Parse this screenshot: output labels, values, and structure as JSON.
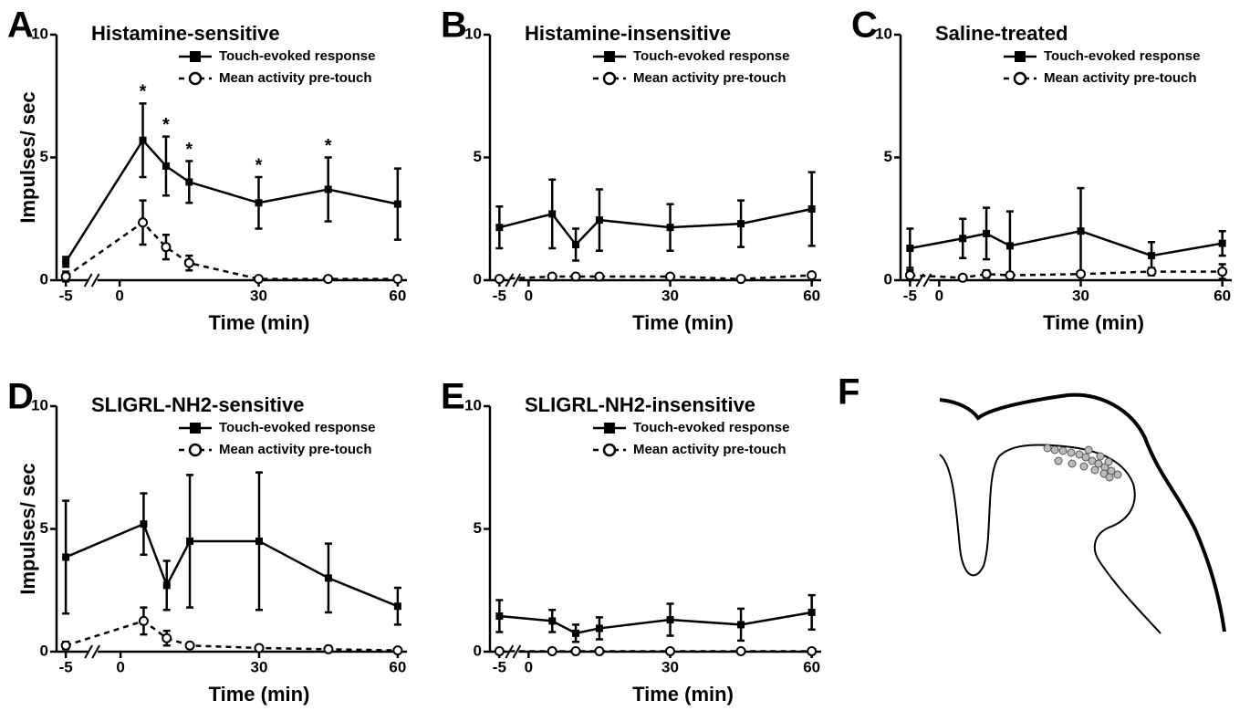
{
  "chart_data": [
    {
      "type": "line",
      "panel": "A",
      "title": "Histamine-sensitive",
      "ylabel": "Impulses/ sec",
      "xlabel": "Time (min)",
      "x": [
        -5,
        5,
        10,
        15,
        30,
        45,
        60
      ],
      "xlim": [
        -7,
        62
      ],
      "xticks": [
        -5,
        0,
        30,
        60
      ],
      "axis_break": true,
      "ylim": [
        0,
        10
      ],
      "yticks": [
        0,
        5,
        10
      ],
      "legend": "top-right",
      "series": [
        {
          "name": "Touch-evoked response",
          "color": "#000000",
          "marker": "square",
          "dashed": false,
          "values": [
            0.75,
            5.7,
            4.65,
            4.0,
            3.15,
            3.7,
            3.1
          ],
          "errors": [
            0.2,
            1.5,
            1.2,
            0.85,
            1.05,
            1.3,
            1.45
          ]
        },
        {
          "name": "Mean activity pre-touch",
          "color": "#000000",
          "marker": "open-circle",
          "dashed": true,
          "values": [
            0.15,
            2.35,
            1.35,
            0.7,
            0.05,
            0.05,
            0.05
          ],
          "errors": [
            0.2,
            0.9,
            0.5,
            0.3,
            0,
            0,
            0
          ]
        }
      ],
      "significance": {
        "x": [
          5,
          10,
          15,
          30,
          45
        ],
        "label": "*"
      }
    },
    {
      "type": "line",
      "panel": "B",
      "title": "Histamine-insensitive",
      "xlabel": "Time (min)",
      "x": [
        -5,
        5,
        10,
        15,
        30,
        45,
        60
      ],
      "xlim": [
        -7,
        62
      ],
      "xticks": [
        -5,
        0,
        30,
        60
      ],
      "axis_break": true,
      "ylim": [
        0,
        10
      ],
      "yticks": [
        0,
        5,
        10
      ],
      "legend": "top-right",
      "series": [
        {
          "name": "Touch-evoked response",
          "color": "#000000",
          "marker": "square",
          "dashed": false,
          "values": [
            2.15,
            2.7,
            1.45,
            2.45,
            2.15,
            2.3,
            2.9
          ],
          "errors": [
            0.85,
            1.4,
            0.65,
            1.25,
            0.95,
            0.95,
            1.5
          ]
        },
        {
          "name": "Mean activity pre-touch",
          "color": "#000000",
          "marker": "open-circle",
          "dashed": true,
          "values": [
            0.05,
            0.15,
            0.15,
            0.15,
            0.15,
            0.05,
            0.2
          ],
          "errors": [
            0.05,
            0.05,
            0.05,
            0.05,
            0.05,
            0.05,
            0.1
          ]
        }
      ]
    },
    {
      "type": "line",
      "panel": "C",
      "title": "Saline-treated",
      "xlabel": "Time (min)",
      "x": [
        -5,
        5,
        10,
        15,
        30,
        45,
        60
      ],
      "xlim": [
        -7,
        62
      ],
      "xticks": [
        -5,
        0,
        30,
        60
      ],
      "axis_break": true,
      "ylim": [
        0,
        10
      ],
      "yticks": [
        0,
        5,
        10
      ],
      "legend": "top-right",
      "series": [
        {
          "name": "Touch-evoked response",
          "color": "#000000",
          "marker": "square",
          "dashed": false,
          "values": [
            1.3,
            1.7,
            1.9,
            1.4,
            2.0,
            1.0,
            1.5
          ],
          "errors": [
            0.8,
            0.8,
            1.05,
            1.4,
            1.75,
            0.55,
            0.5
          ]
        },
        {
          "name": "Mean activity pre-touch",
          "color": "#000000",
          "marker": "open-circle",
          "dashed": true,
          "values": [
            0.2,
            0.1,
            0.25,
            0.2,
            0.25,
            0.35,
            0.35
          ],
          "errors": [
            0.2,
            0.05,
            0.15,
            0.1,
            0.1,
            0.15,
            0.3
          ]
        }
      ]
    },
    {
      "type": "line",
      "panel": "D",
      "title": "SLIGRL-NH2-sensitive",
      "ylabel": "Impulses/ sec",
      "xlabel": "Time (min)",
      "x": [
        -5,
        5,
        10,
        15,
        30,
        45,
        60
      ],
      "xlim": [
        -7,
        62
      ],
      "xticks": [
        -5,
        0,
        30,
        60
      ],
      "axis_break": true,
      "ylim": [
        0,
        10
      ],
      "yticks": [
        0,
        5,
        10
      ],
      "legend": "top-right",
      "series": [
        {
          "name": "Touch-evoked response",
          "color": "#000000",
          "marker": "square",
          "dashed": false,
          "values": [
            3.85,
            5.2,
            2.7,
            4.5,
            4.5,
            3.0,
            1.85
          ],
          "errors": [
            2.3,
            1.25,
            1.0,
            2.7,
            2.8,
            1.4,
            0.75
          ]
        },
        {
          "name": "Mean activity pre-touch",
          "color": "#000000",
          "marker": "open-circle",
          "dashed": true,
          "values": [
            0.25,
            1.25,
            0.55,
            0.25,
            0.15,
            0.1,
            0.05
          ],
          "errors": [
            0.15,
            0.55,
            0.3,
            0.1,
            0.05,
            0.05,
            0.05
          ]
        }
      ]
    },
    {
      "type": "line",
      "panel": "E",
      "title": "SLIGRL-NH2-insensitive",
      "xlabel": "Time (min)",
      "x": [
        -5,
        5,
        10,
        15,
        30,
        45,
        60
      ],
      "xlim": [
        -7,
        62
      ],
      "xticks": [
        -5,
        0,
        30,
        60
      ],
      "axis_break": true,
      "ylim": [
        0,
        10
      ],
      "yticks": [
        0,
        5,
        10
      ],
      "legend": "top-right",
      "series": [
        {
          "name": "Touch-evoked response",
          "color": "#000000",
          "marker": "square",
          "dashed": false,
          "values": [
            1.45,
            1.25,
            0.75,
            0.95,
            1.3,
            1.1,
            1.6
          ],
          "errors": [
            0.65,
            0.45,
            0.35,
            0.45,
            0.65,
            0.65,
            0.7
          ]
        },
        {
          "name": "Mean activity pre-touch",
          "color": "#000000",
          "marker": "open-circle",
          "dashed": true,
          "values": [
            0.02,
            0.02,
            0.02,
            0.02,
            0.02,
            0.02,
            0.02
          ],
          "errors": [
            0,
            0,
            0,
            0,
            0,
            0,
            0
          ]
        }
      ]
    }
  ],
  "panel_f": {
    "panel": "F"
  }
}
